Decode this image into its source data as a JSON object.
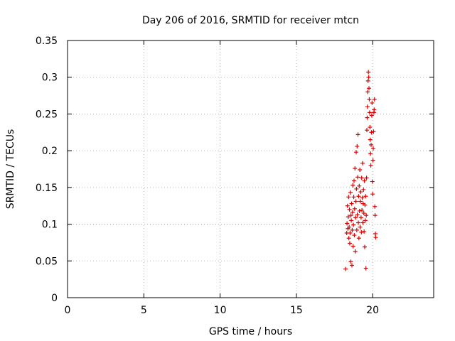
{
  "chart_data": {
    "type": "scatter",
    "title": "Day 206 of 2016, SRMTID for receiver mtcn",
    "xlabel": "GPS time / hours",
    "ylabel": "SRMTID / TECUs",
    "xlim": [
      0,
      24
    ],
    "ylim": [
      0,
      0.35
    ],
    "x_ticks": [
      0,
      5,
      10,
      15,
      20
    ],
    "x_tick_labels": [
      "0",
      "5",
      "10",
      "15",
      "20"
    ],
    "y_ticks": [
      0,
      0.05,
      0.1,
      0.15,
      0.2,
      0.25,
      0.3,
      0.35
    ],
    "y_tick_labels": [
      "0",
      "0.05",
      "0.1",
      "0.15",
      "0.2",
      "0.25",
      "0.3",
      "0.35"
    ],
    "grid": true,
    "marker": "+",
    "marker_color": "#dd0000",
    "series": [
      {
        "points": [
          [
            18.22,
            0.039
          ],
          [
            18.3,
            0.088
          ],
          [
            18.32,
            0.101
          ],
          [
            18.35,
            0.125
          ],
          [
            18.38,
            0.094
          ],
          [
            18.4,
            0.11
          ],
          [
            18.42,
            0.137
          ],
          [
            18.44,
            0.081
          ],
          [
            18.46,
            0.096
          ],
          [
            18.48,
            0.12
          ],
          [
            18.5,
            0.074
          ],
          [
            18.52,
            0.088
          ],
          [
            18.55,
            0.143
          ],
          [
            18.57,
            0.049
          ],
          [
            18.58,
            0.112
          ],
          [
            18.6,
            0.105
          ],
          [
            18.62,
            0.128
          ],
          [
            18.64,
            0.044
          ],
          [
            18.66,
            0.092
          ],
          [
            18.68,
            0.116
          ],
          [
            18.7,
            0.153
          ],
          [
            18.72,
            0.07
          ],
          [
            18.74,
            0.099
          ],
          [
            18.76,
            0.137
          ],
          [
            18.78,
            0.159
          ],
          [
            18.8,
            0.085
          ],
          [
            18.82,
            0.121
          ],
          [
            18.84,
            0.176
          ],
          [
            18.86,
            0.063
          ],
          [
            18.88,
            0.109
          ],
          [
            18.9,
            0.131
          ],
          [
            18.92,
            0.198
          ],
          [
            18.94,
            0.148
          ],
          [
            18.96,
            0.092
          ],
          [
            18.98,
            0.206
          ],
          [
            19.0,
            0.113
          ],
          [
            19.02,
            0.164
          ],
          [
            19.04,
            0.222
          ],
          [
            19.06,
            0.102
          ],
          [
            19.08,
            0.138
          ],
          [
            19.1,
            0.081
          ],
          [
            19.12,
            0.152
          ],
          [
            19.14,
            0.118
          ],
          [
            19.16,
            0.174
          ],
          [
            19.18,
            0.096
          ],
          [
            19.2,
            0.131
          ],
          [
            19.22,
            0.144
          ],
          [
            19.24,
            0.109
          ],
          [
            19.26,
            0.089
          ],
          [
            19.28,
            0.163
          ],
          [
            19.3,
            0.119
          ],
          [
            19.32,
            0.136
          ],
          [
            19.34,
            0.183
          ],
          [
            19.36,
            0.102
          ],
          [
            19.38,
            0.128
          ],
          [
            19.4,
            0.147
          ],
          [
            19.42,
            0.115
          ],
          [
            19.44,
            0.09
          ],
          [
            19.46,
            0.159
          ],
          [
            19.48,
            0.069
          ],
          [
            19.5,
            0.126
          ],
          [
            19.52,
            0.105
          ],
          [
            19.54,
            0.138
          ],
          [
            19.56,
            0.04
          ],
          [
            19.58,
            0.112
          ],
          [
            19.6,
            0.163
          ],
          [
            19.62,
            0.228
          ],
          [
            19.64,
            0.245
          ],
          [
            19.66,
            0.26
          ],
          [
            19.68,
            0.28
          ],
          [
            19.7,
            0.295
          ],
          [
            19.72,
            0.307
          ],
          [
            19.74,
            0.3
          ],
          [
            19.76,
            0.285
          ],
          [
            19.78,
            0.27
          ],
          [
            19.8,
            0.252
          ],
          [
            19.82,
            0.232
          ],
          [
            19.84,
            0.215
          ],
          [
            19.86,
            0.196
          ],
          [
            19.88,
            0.18
          ],
          [
            19.9,
            0.208
          ],
          [
            19.92,
            0.225
          ],
          [
            19.94,
            0.248
          ],
          [
            19.96,
            0.265
          ],
          [
            19.98,
            0.158
          ],
          [
            20.0,
            0.141
          ],
          [
            20.02,
            0.187
          ],
          [
            20.04,
            0.203
          ],
          [
            20.06,
            0.226
          ],
          [
            20.08,
            0.252
          ],
          [
            20.1,
            0.256
          ],
          [
            20.12,
            0.27
          ],
          [
            20.14,
            0.124
          ],
          [
            20.16,
            0.112
          ],
          [
            20.18,
            0.087
          ],
          [
            20.2,
            0.082
          ]
        ]
      }
    ]
  }
}
